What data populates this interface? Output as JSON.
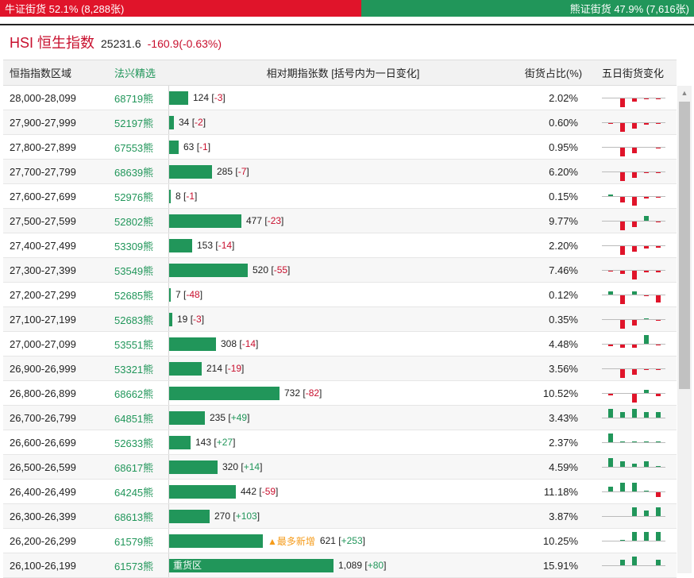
{
  "ratio": {
    "bull_label": "牛证街货 52.1% (8,288张)",
    "bear_label": "熊证街货 47.9% (7,616张)",
    "bull_pct": 52.1,
    "bull_color": "#e0142a",
    "bear_color": "#21965a"
  },
  "index": {
    "name": "HSI 恒生指数",
    "value": "25231.6",
    "change": "-160.9(-0.63%)"
  },
  "table": {
    "headers": {
      "range": "恒指指数区域",
      "pick": "法兴精选",
      "bar": "相对期指张数 [括号内为一日变化]",
      "ratio": "街货占比(%)",
      "mini": "五日街货变化"
    },
    "rows": [
      {
        "range": "28,000-28,099",
        "pick": "68719熊",
        "count": 124,
        "count_text": "124",
        "change": "-3",
        "ratio": "2.02%",
        "mini": [
          0,
          -3,
          -1,
          -0.3,
          -0.3
        ]
      },
      {
        "range": "27,900-27,999",
        "pick": "52197熊",
        "count": 34,
        "count_text": "34",
        "change": "-2",
        "ratio": "0.60%",
        "mini": [
          -0.3,
          -3,
          -2,
          -0.5,
          -0.3
        ]
      },
      {
        "range": "27,800-27,899",
        "pick": "67553熊",
        "count": 63,
        "count_text": "63",
        "change": "-1",
        "ratio": "0.95%",
        "mini": [
          0,
          -3,
          -2,
          0,
          -0.3
        ]
      },
      {
        "range": "27,700-27,799",
        "pick": "68639熊",
        "count": 285,
        "count_text": "285",
        "change": "-7",
        "ratio": "6.20%",
        "mini": [
          0,
          -3,
          -2,
          -0.3,
          -0.3
        ]
      },
      {
        "range": "27,600-27,699",
        "pick": "52976熊",
        "count": 8,
        "count_text": "8",
        "change": "-1",
        "ratio": "0.15%",
        "mini": [
          0.5,
          -2,
          -3,
          -0.5,
          -0.3
        ]
      },
      {
        "range": "27,500-27,599",
        "pick": "52802熊",
        "count": 477,
        "count_text": "477",
        "change": "-23",
        "ratio": "9.77%",
        "mini": [
          0,
          -3,
          -2,
          1.5,
          -0.3
        ]
      },
      {
        "range": "27,400-27,499",
        "pick": "53309熊",
        "count": 153,
        "count_text": "153",
        "change": "-14",
        "ratio": "2.20%",
        "mini": [
          0,
          -3,
          -2,
          -0.8,
          -0.5
        ]
      },
      {
        "range": "27,300-27,399",
        "pick": "53549熊",
        "count": 520,
        "count_text": "520",
        "change": "-55",
        "ratio": "7.46%",
        "mini": [
          -0.3,
          -1,
          -3,
          -0.5,
          -0.5
        ]
      },
      {
        "range": "27,200-27,299",
        "pick": "52685熊",
        "count": 7,
        "count_text": "7",
        "change": "-48",
        "ratio": "0.12%",
        "mini": [
          1,
          -3,
          1.2,
          -0.3,
          -2.5
        ]
      },
      {
        "range": "27,100-27,199",
        "pick": "52683熊",
        "count": 19,
        "count_text": "19",
        "change": "-3",
        "ratio": "0.35%",
        "mini": [
          0,
          -3,
          -2,
          0.3,
          -0.3
        ]
      },
      {
        "range": "27,000-27,099",
        "pick": "53551熊",
        "count": 308,
        "count_text": "308",
        "change": "-14",
        "ratio": "4.48%",
        "mini": [
          -0.5,
          -1,
          -1,
          3,
          -0.3
        ]
      },
      {
        "range": "26,900-26,999",
        "pick": "53321熊",
        "count": 214,
        "count_text": "214",
        "change": "-19",
        "ratio": "3.56%",
        "mini": [
          0,
          -3,
          -2,
          -0.3,
          -0.3
        ]
      },
      {
        "range": "26,800-26,899",
        "pick": "68662熊",
        "count": 732,
        "count_text": "732",
        "change": "-82",
        "ratio": "10.52%",
        "mini": [
          -0.5,
          0,
          -3,
          1,
          -0.8
        ]
      },
      {
        "range": "26,700-26,799",
        "pick": "64851熊",
        "count": 235,
        "count_text": "235",
        "change": "+49",
        "ratio": "3.43%",
        "mini": [
          3,
          2,
          3,
          2,
          2
        ]
      },
      {
        "range": "26,600-26,699",
        "pick": "52633熊",
        "count": 143,
        "count_text": "143",
        "change": "+27",
        "ratio": "2.37%",
        "mini": [
          3,
          0.3,
          0.3,
          0.3,
          0.3
        ]
      },
      {
        "range": "26,500-26,599",
        "pick": "68617熊",
        "count": 320,
        "count_text": "320",
        "change": "+14",
        "ratio": "4.59%",
        "mini": [
          3,
          2,
          1,
          2,
          0.3
        ]
      },
      {
        "range": "26,400-26,499",
        "pick": "64245熊",
        "count": 442,
        "count_text": "442",
        "change": "-59",
        "ratio": "11.18%",
        "mini": [
          1.5,
          3,
          3,
          0.3,
          -1.5
        ]
      },
      {
        "range": "26,300-26,399",
        "pick": "68613熊",
        "count": 270,
        "count_text": "270",
        "change": "+103",
        "ratio": "3.87%",
        "mini": [
          0,
          0,
          3,
          2,
          3
        ]
      },
      {
        "range": "26,200-26,299",
        "pick": "61579熊",
        "count": 621,
        "count_text": "621",
        "change": "+253",
        "ratio": "10.25%",
        "tag": "▲最多新增",
        "mini": [
          0,
          0.3,
          3,
          3,
          3
        ]
      },
      {
        "range": "26,100-26,199",
        "pick": "61573熊",
        "count": 1089,
        "count_text": "1,089",
        "change": "+80",
        "ratio": "15.91%",
        "inside_label": "重货区",
        "mini": [
          0,
          2,
          3,
          0,
          2
        ]
      }
    ]
  }
}
